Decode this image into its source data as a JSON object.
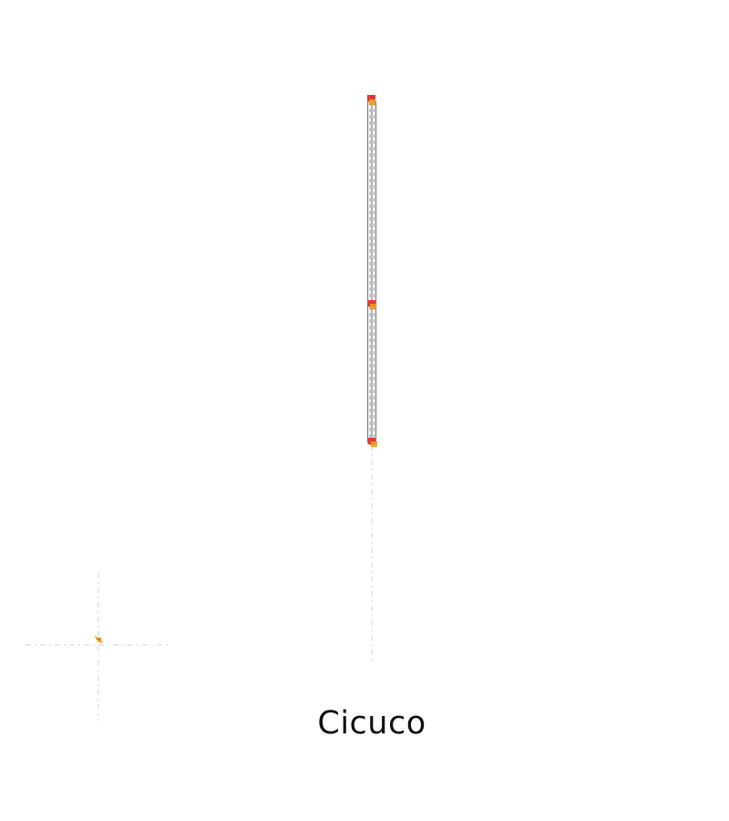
{
  "title": "Cicuco",
  "colors": {
    "track": "#8a8a8a",
    "guide": "#d9d9d9",
    "stop_primary": "#e53935",
    "stop_secondary": "#f39a1e",
    "marker": "#f5a623"
  },
  "stops_count": 3
}
